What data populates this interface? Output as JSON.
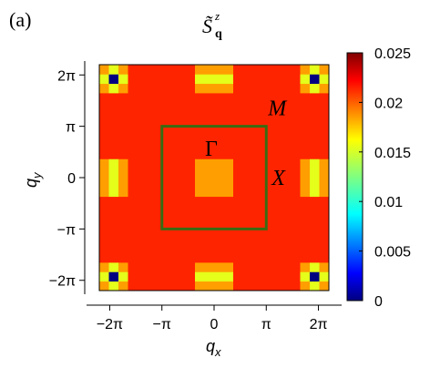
{
  "panel_label": "(a)",
  "chart_data": {
    "type": "heatmap",
    "title": "S̃",
    "title_superscript": "z",
    "title_subscript": "q",
    "xlabel": "q",
    "xlabel_sub": "x",
    "ylabel": "q",
    "ylabel_sub": "y",
    "xlim": [
      -2.2,
      2.2
    ],
    "ylim": [
      -2.2,
      2.2
    ],
    "x_ticks": [
      -2,
      -1,
      0,
      1,
      2
    ],
    "y_ticks": [
      -2,
      -1,
      0,
      1,
      2
    ],
    "x_tick_labels": [
      "−2π",
      "−π",
      "0",
      "π",
      "2π"
    ],
    "y_tick_labels": [
      "−2π",
      "−π",
      "0",
      "π",
      "2π"
    ],
    "grid_n": 24,
    "background_value": 0.021,
    "peak_centers": [
      [
        0,
        0
      ],
      [
        -2,
        0
      ],
      [
        2,
        0
      ],
      [
        0,
        -2
      ],
      [
        0,
        2
      ],
      [
        -2,
        -2
      ],
      [
        -2,
        2
      ],
      [
        2,
        -2
      ],
      [
        2,
        2
      ]
    ],
    "center_value": 0.0,
    "neighbor_value": 0.015,
    "diagonal_value": 0.018,
    "colorbar": {
      "min": 0,
      "max": 0.025,
      "ticks": [
        0,
        0.005,
        0.01,
        0.015,
        0.02,
        0.025
      ],
      "tick_labels": [
        "0",
        "0.005",
        "0.01",
        "0.015",
        "0.02",
        "0.025"
      ]
    },
    "brillouin_zone": {
      "x": [
        -1,
        1
      ],
      "y": [
        -1,
        1
      ],
      "color": "#3a6b12"
    },
    "annotations": [
      {
        "text": "M",
        "x": 1.0,
        "y": 1.0
      },
      {
        "text": "Γ",
        "x": 0.0,
        "y": 0.0
      },
      {
        "text": "X",
        "x": 1.0,
        "y": 0.0
      }
    ]
  }
}
